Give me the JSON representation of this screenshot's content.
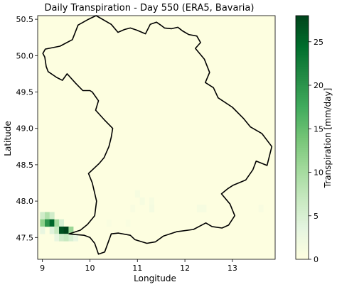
{
  "chart_data": {
    "type": "heatmap",
    "title": "Daily Transpiration - Day 550 (ERA5, Bavaria)",
    "xlabel": "Longitude",
    "ylabel": "Latitude",
    "xlim": [
      8.9,
      13.9
    ],
    "ylim": [
      47.2,
      50.55
    ],
    "xticks": [
      9,
      10,
      11,
      12,
      13
    ],
    "xtick_labels": [
      "9",
      "10",
      "11",
      "12",
      "13"
    ],
    "yticks": [
      47.5,
      48.0,
      48.5,
      49.0,
      49.5,
      50.0,
      50.5
    ],
    "ytick_labels": [
      "47.5",
      "48.0",
      "48.5",
      "49.0",
      "49.5",
      "50.0",
      "50.5"
    ],
    "colorbar": {
      "label": "Transpiration [mm/day]",
      "colormap": "Greens",
      "range": [
        0,
        28
      ],
      "ticks": [
        0,
        5,
        10,
        15,
        20,
        25
      ],
      "tick_labels": [
        "0",
        "5",
        "10",
        "15",
        "20",
        "25"
      ]
    },
    "grid": false,
    "cell_size_deg": 0.1,
    "background_value": 0.3,
    "cells": [
      {
        "lon": 9.0,
        "lat": 47.8,
        "value": 6
      },
      {
        "lon": 9.1,
        "lat": 47.8,
        "value": 9
      },
      {
        "lon": 9.2,
        "lat": 47.8,
        "value": 6
      },
      {
        "lon": 9.0,
        "lat": 47.7,
        "value": 12
      },
      {
        "lon": 9.1,
        "lat": 47.7,
        "value": 20
      },
      {
        "lon": 9.2,
        "lat": 47.7,
        "value": 25
      },
      {
        "lon": 9.3,
        "lat": 47.7,
        "value": 10
      },
      {
        "lon": 9.4,
        "lat": 47.7,
        "value": 5
      },
      {
        "lon": 9.0,
        "lat": 47.6,
        "value": 3
      },
      {
        "lon": 9.2,
        "lat": 47.6,
        "value": 4
      },
      {
        "lon": 9.3,
        "lat": 47.6,
        "value": 7
      },
      {
        "lon": 9.4,
        "lat": 47.6,
        "value": 27
      },
      {
        "lon": 9.5,
        "lat": 47.6,
        "value": 28
      },
      {
        "lon": 9.6,
        "lat": 47.6,
        "value": 11
      },
      {
        "lon": 9.3,
        "lat": 47.5,
        "value": 3
      },
      {
        "lon": 9.4,
        "lat": 47.5,
        "value": 6
      },
      {
        "lon": 9.5,
        "lat": 47.5,
        "value": 7
      },
      {
        "lon": 9.6,
        "lat": 47.5,
        "value": 5
      },
      {
        "lon": 9.7,
        "lat": 47.5,
        "value": 3
      },
      {
        "lon": 11.0,
        "lat": 48.1,
        "value": 1.2
      },
      {
        "lon": 11.1,
        "lat": 48.0,
        "value": 1.2
      },
      {
        "lon": 11.3,
        "lat": 48.0,
        "value": 1.2
      },
      {
        "lon": 11.3,
        "lat": 47.9,
        "value": 1.5
      },
      {
        "lon": 10.9,
        "lat": 47.9,
        "value": 1.0
      },
      {
        "lon": 12.3,
        "lat": 47.9,
        "value": 1.2
      },
      {
        "lon": 12.4,
        "lat": 47.9,
        "value": 1.2
      },
      {
        "lon": 13.6,
        "lat": 47.9,
        "value": 1.0
      },
      {
        "lon": 10.4,
        "lat": 47.7,
        "value": 0.8
      },
      {
        "lon": 10.8,
        "lat": 47.7,
        "value": 0.8
      }
    ],
    "boundary": [
      [
        10.13,
        50.55
      ],
      [
        10.45,
        50.43
      ],
      [
        10.59,
        50.32
      ],
      [
        10.73,
        50.36
      ],
      [
        10.85,
        50.38
      ],
      [
        10.99,
        50.35
      ],
      [
        11.17,
        50.3
      ],
      [
        11.27,
        50.43
      ],
      [
        11.4,
        50.46
      ],
      [
        11.49,
        50.42
      ],
      [
        11.57,
        50.38
      ],
      [
        11.72,
        50.37
      ],
      [
        11.85,
        50.39
      ],
      [
        11.95,
        50.34
      ],
      [
        12.08,
        50.29
      ],
      [
        12.25,
        50.27
      ],
      [
        12.33,
        50.18
      ],
      [
        12.22,
        50.1
      ],
      [
        12.41,
        49.95
      ],
      [
        12.52,
        49.77
      ],
      [
        12.43,
        49.63
      ],
      [
        12.6,
        49.56
      ],
      [
        12.7,
        49.42
      ],
      [
        13.0,
        49.29
      ],
      [
        13.23,
        49.14
      ],
      [
        13.38,
        49.02
      ],
      [
        13.62,
        48.93
      ],
      [
        13.83,
        48.75
      ],
      [
        13.73,
        48.49
      ],
      [
        13.5,
        48.55
      ],
      [
        13.43,
        48.43
      ],
      [
        13.28,
        48.29
      ],
      [
        13.02,
        48.22
      ],
      [
        12.9,
        48.17
      ],
      [
        12.77,
        48.1
      ],
      [
        12.95,
        47.96
      ],
      [
        13.05,
        47.8
      ],
      [
        12.92,
        47.67
      ],
      [
        12.78,
        47.63
      ],
      [
        12.57,
        47.65
      ],
      [
        12.44,
        47.7
      ],
      [
        12.18,
        47.61
      ],
      [
        11.83,
        47.58
      ],
      [
        11.55,
        47.52
      ],
      [
        11.38,
        47.44
      ],
      [
        11.2,
        47.42
      ],
      [
        10.95,
        47.47
      ],
      [
        10.85,
        47.53
      ],
      [
        10.6,
        47.56
      ],
      [
        10.45,
        47.55
      ],
      [
        10.31,
        47.3
      ],
      [
        10.18,
        47.27
      ],
      [
        10.1,
        47.42
      ],
      [
        10.0,
        47.5
      ],
      [
        9.88,
        47.53
      ],
      [
        9.7,
        47.54
      ],
      [
        9.56,
        47.55
      ],
      [
        9.8,
        47.6
      ],
      [
        9.95,
        47.68
      ],
      [
        10.1,
        47.8
      ],
      [
        10.14,
        48.0
      ],
      [
        10.05,
        48.25
      ],
      [
        9.97,
        48.38
      ],
      [
        10.2,
        48.52
      ],
      [
        10.3,
        48.6
      ],
      [
        10.4,
        48.75
      ],
      [
        10.45,
        48.88
      ],
      [
        10.48,
        49.0
      ],
      [
        10.3,
        49.12
      ],
      [
        10.12,
        49.25
      ],
      [
        10.18,
        49.38
      ],
      [
        10.05,
        49.5
      ],
      [
        10.0,
        49.52
      ],
      [
        9.85,
        49.52
      ],
      [
        9.7,
        49.62
      ],
      [
        9.52,
        49.75
      ],
      [
        9.42,
        49.66
      ],
      [
        9.3,
        49.7
      ],
      [
        9.12,
        49.78
      ],
      [
        9.08,
        49.85
      ],
      [
        9.05,
        49.98
      ],
      [
        9.01,
        50.03
      ],
      [
        9.06,
        50.09
      ],
      [
        9.37,
        50.13
      ],
      [
        9.63,
        50.22
      ],
      [
        9.75,
        50.42
      ],
      [
        9.97,
        50.5
      ],
      [
        10.13,
        50.55
      ]
    ]
  }
}
